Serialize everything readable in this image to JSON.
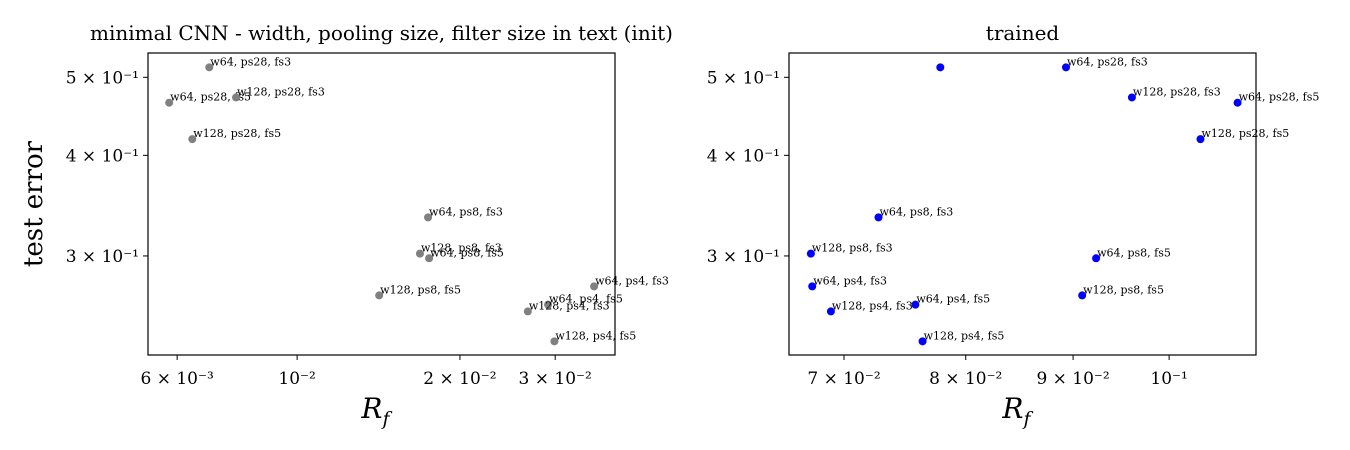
{
  "chart_data": [
    {
      "type": "scatter",
      "title": "minimal CNN - width, pooling size, filter size in text (init)",
      "xlabel": "R",
      "xlabel_sub": "f",
      "ylabel": "test error",
      "xscale": "log",
      "yscale": "log",
      "color": "#808080",
      "x": [
        0.00688,
        0.0058,
        0.00771,
        0.0064,
        0.01746,
        0.01687,
        0.01754,
        0.01418,
        0.0354,
        0.0291,
        0.0267,
        0.0299
      ],
      "values": [
        0.5145,
        0.465,
        0.472,
        0.419,
        0.335,
        0.302,
        0.298,
        0.268,
        0.275,
        0.261,
        0.256,
        0.235
      ],
      "point_labels": [
        "w64, ps28, fs3",
        "w64, ps28, fs5",
        "w128, ps28, fs3",
        "w128, ps28, fs5",
        "w64, ps8, fs3",
        "w128, ps8, fs3",
        "w64, ps8, fs5",
        "w128, ps8, fs5",
        "w64, ps4, fs3",
        "w64, ps4, fs5",
        "w128, ps4, fs3",
        "w128, ps4, fs5"
      ],
      "xlim": [
        0.0053,
        0.0387
      ],
      "ylim": [
        0.226,
        0.536
      ],
      "xticks": [
        {
          "value": 0.006,
          "label": "6 × 10⁻³"
        },
        {
          "value": 0.01,
          "label": "10⁻²"
        },
        {
          "value": 0.02,
          "label": "2 × 10⁻²"
        },
        {
          "value": 0.03,
          "label": "3 × 10⁻²"
        }
      ],
      "yticks": [
        {
          "value": 0.3,
          "label": "3 × 10⁻¹"
        },
        {
          "value": 0.4,
          "label": "4 × 10⁻¹"
        },
        {
          "value": 0.5,
          "label": "5 × 10⁻¹"
        }
      ]
    },
    {
      "type": "scatter",
      "title": "trained",
      "xlabel": "R",
      "xlabel_sub": "f",
      "xscale": "log",
      "yscale": "log",
      "color": "#0000ff",
      "x": [
        0.0893,
        0.0778,
        0.096,
        0.1078,
        0.1035,
        0.0727,
        0.0675,
        0.0923,
        0.0909,
        0.0676,
        0.0757,
        0.069,
        0.0763
      ],
      "values": [
        0.5145,
        0.5145,
        0.472,
        0.465,
        0.419,
        0.335,
        0.302,
        0.298,
        0.268,
        0.275,
        0.261,
        0.256,
        0.235
      ],
      "point_labels": [
        "w64, ps28, fs3",
        null,
        "w128, ps28, fs3",
        "w64, ps28, fs5",
        "w128, ps28, fs5",
        "w64, ps8, fs3",
        "w128, ps8, fs3",
        "w64, ps8, fs5",
        "w128, ps8, fs5",
        "w64, ps4, fs3",
        "w64, ps4, fs5",
        "w128, ps4, fs3",
        "w128, ps4, fs5"
      ],
      "xlim": [
        0.0659,
        0.11
      ],
      "ylim": [
        0.226,
        0.536
      ],
      "xticks": [
        {
          "value": 0.07,
          "label": "7 × 10⁻²"
        },
        {
          "value": 0.08,
          "label": "8 × 10⁻²"
        },
        {
          "value": 0.09,
          "label": "9 × 10⁻²"
        },
        {
          "value": 0.1,
          "label": "10⁻¹"
        }
      ],
      "yticks": [
        {
          "value": 0.3,
          "label": "3 × 10⁻¹"
        },
        {
          "value": 0.4,
          "label": "4 × 10⁻¹"
        },
        {
          "value": 0.5,
          "label": "5 × 10⁻¹"
        }
      ]
    }
  ]
}
